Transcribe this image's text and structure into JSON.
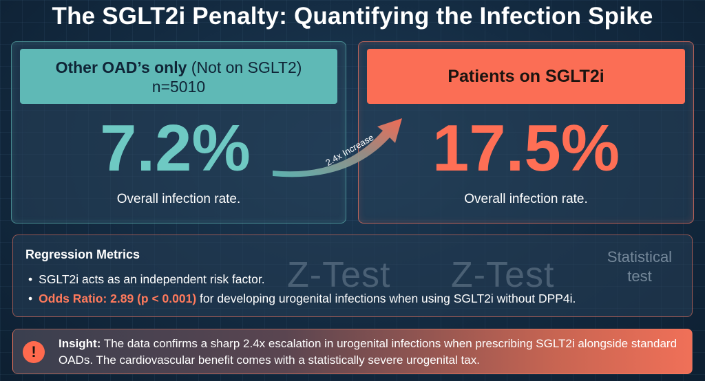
{
  "title": "The SGLT2i Penalty: Quantifying the Infection Spike",
  "left_panel": {
    "header_bold": "Other OAD’s only",
    "header_rest": " (Not on SGLT2)",
    "header_n": "n=5010",
    "value": "7.2%",
    "caption": "Overall infection rate."
  },
  "arrow": {
    "label": "2.4x Increase"
  },
  "right_panel": {
    "header": "Patients on SGLT2i",
    "value": "17.5%",
    "caption": "Overall infection rate."
  },
  "regression": {
    "title": "Regression Metrics",
    "item1": "SGLT2i acts as an independent risk factor.",
    "item2_highlight": "Odds Ratio: 2.89 (p < 0.001)",
    "item2_rest": " for developing urogenital infections when using SGLT2i without DPP4i.",
    "watermark1": "Z-Test",
    "watermark2": "Z-Test",
    "stat_test_line1": "Statistical",
    "stat_test_line2": "test"
  },
  "insight": {
    "icon": "!",
    "label": "Insight:",
    "text": " The data confirms a sharp 2.4x escalation in urogenital infections when prescribing SGLT2i alongside standard OADs. The cardiovascular benefit comes with a statistically severe urogenital tax."
  },
  "colors": {
    "teal": "#5fb9b6",
    "coral": "#fb6e55",
    "background": "#132a40"
  }
}
